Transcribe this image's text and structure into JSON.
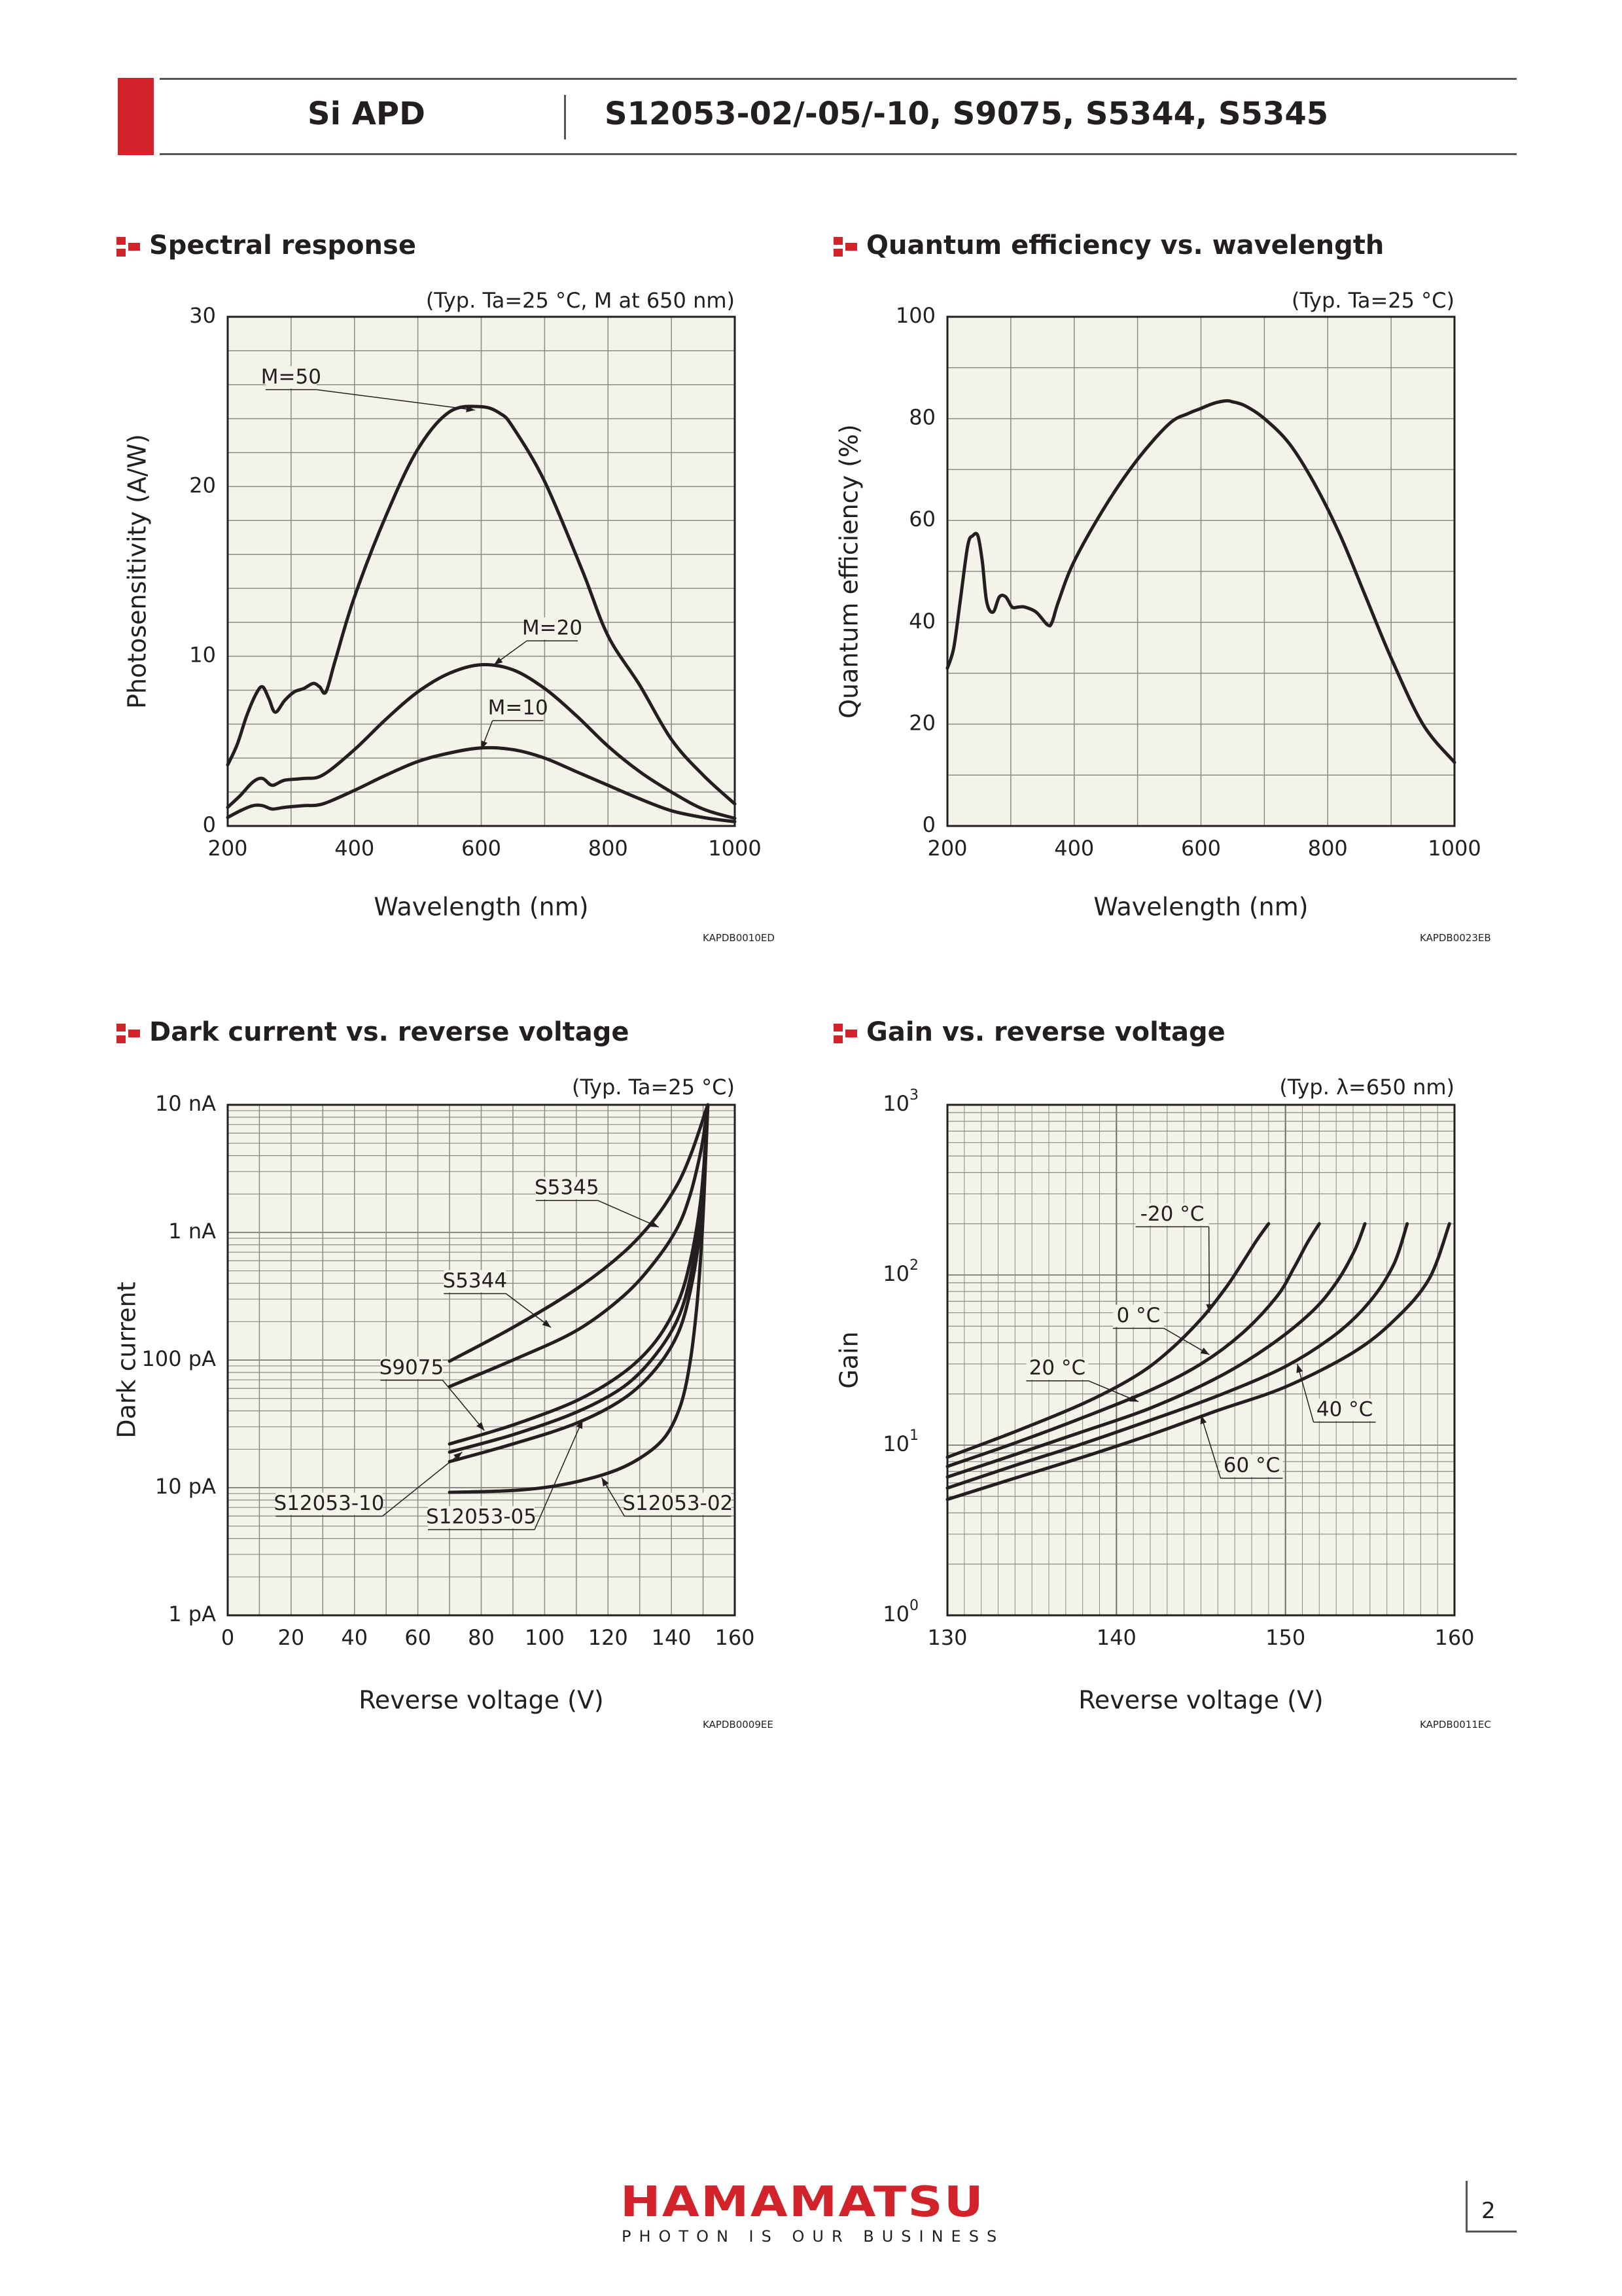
{
  "header": {
    "left_title": "Si APD",
    "right_title": "S12053-02/-05/-10, S9075, S5344, S5345"
  },
  "sections": {
    "spectral": "Spectral response",
    "qe": "Quantum efficiency vs. wavelength",
    "dark": "Dark current vs. reverse voltage",
    "gain": "Gain vs. reverse voltage"
  },
  "codes": {
    "spectral": "KAPDB0010ED",
    "qe": "KAPDB0023EB",
    "dark": "KAPDB0009EE",
    "gain": "KAPDB0011EC"
  },
  "footer": {
    "logo": "HAMAMATSU",
    "tagline": "PHOTON IS OUR BUSINESS",
    "page": "2"
  },
  "colors": {
    "brand_red": "#d2232a",
    "plot_bg": "#f4f3ea",
    "ink": "#231f20"
  },
  "chart_data": [
    {
      "id": "spectral",
      "type": "line",
      "note": "(Typ. Ta=25 °C, M at 650 nm)",
      "xlabel": "Wavelength (nm)",
      "ylabel": "Photosensitivity (A/W)",
      "xlim": [
        200,
        1000
      ],
      "ylim": [
        0,
        30
      ],
      "xticks": [
        200,
        400,
        600,
        800,
        1000
      ],
      "yticks": [
        0,
        10,
        20,
        30
      ],
      "grid": true,
      "series": [
        {
          "name": "M=50",
          "x": [
            200,
            215,
            230,
            245,
            255,
            265,
            275,
            290,
            305,
            320,
            335,
            345,
            355,
            370,
            400,
            450,
            500,
            550,
            600,
            630,
            650,
            700,
            760,
            800,
            850,
            900,
            950,
            1000
          ],
          "y": [
            3.6,
            4.8,
            6.5,
            7.8,
            8.2,
            7.5,
            6.7,
            7.4,
            7.9,
            8.1,
            8.4,
            8.2,
            7.9,
            9.8,
            13.5,
            18.3,
            22.2,
            24.4,
            24.7,
            24.3,
            23.5,
            20.3,
            15.0,
            11.2,
            8.3,
            5.1,
            3.0,
            1.3
          ]
        },
        {
          "name": "M=20",
          "x": [
            200,
            220,
            240,
            255,
            270,
            290,
            320,
            350,
            400,
            450,
            500,
            550,
            600,
            650,
            700,
            750,
            800,
            850,
            900,
            950,
            1000
          ],
          "y": [
            1.1,
            1.8,
            2.6,
            2.8,
            2.4,
            2.7,
            2.8,
            3.0,
            4.5,
            6.3,
            7.9,
            9.0,
            9.5,
            9.2,
            8.1,
            6.5,
            4.7,
            3.2,
            2.0,
            1.0,
            0.45
          ]
        },
        {
          "name": "M=10",
          "x": [
            200,
            220,
            240,
            255,
            270,
            290,
            320,
            350,
            400,
            450,
            500,
            550,
            600,
            650,
            700,
            750,
            800,
            850,
            900,
            950,
            1000
          ],
          "y": [
            0.5,
            0.9,
            1.2,
            1.2,
            1.0,
            1.1,
            1.2,
            1.3,
            2.1,
            3.0,
            3.8,
            4.3,
            4.6,
            4.5,
            4.0,
            3.2,
            2.4,
            1.6,
            0.9,
            0.5,
            0.25
          ]
        }
      ],
      "annotations": [
        {
          "text": "M=50",
          "x": 300,
          "y": 26.4,
          "target": [
            590,
            24.5
          ]
        },
        {
          "text": "M=20",
          "x": 712,
          "y": 11.6,
          "target": [
            620,
            9.5
          ]
        },
        {
          "text": "M=10",
          "x": 658,
          "y": 6.9,
          "target": [
            600,
            4.5
          ]
        }
      ]
    },
    {
      "id": "qe",
      "type": "line",
      "note": "(Typ. Ta=25 °C)",
      "xlabel": "Wavelength (nm)",
      "ylabel": "Quantum efficiency (%)",
      "xlim": [
        200,
        1000
      ],
      "ylim": [
        0,
        100
      ],
      "xticks": [
        200,
        400,
        600,
        800,
        1000
      ],
      "yticks": [
        0,
        20,
        40,
        60,
        80,
        100
      ],
      "grid": true,
      "series": [
        {
          "name": "",
          "x": [
            200,
            210,
            220,
            232,
            240,
            248,
            255,
            262,
            272,
            282,
            292,
            302,
            312,
            322,
            340,
            358,
            365,
            375,
            400,
            450,
            500,
            550,
            580,
            600,
            620,
            640,
            650,
            670,
            700,
            740,
            780,
            820,
            860,
            900,
            950,
            1000
          ],
          "y": [
            31,
            35,
            44,
            55,
            57,
            57,
            52,
            44,
            42,
            45,
            45,
            43,
            43,
            43,
            42,
            39.5,
            40,
            44,
            52,
            63,
            72,
            79,
            81,
            82,
            83,
            83.5,
            83.3,
            82.5,
            80,
            75,
            67,
            57,
            45,
            33,
            20,
            12.5
          ]
        }
      ]
    },
    {
      "id": "dark",
      "type": "line",
      "note": "(Typ. Ta=25 °C)",
      "xlabel": "Reverse voltage (V)",
      "ylabel": "Dark current",
      "xlim": [
        0,
        160
      ],
      "ylim": [
        1e-12,
        1e-08
      ],
      "yscale": "log",
      "xticks": [
        0,
        20,
        40,
        60,
        80,
        100,
        120,
        140,
        160
      ],
      "yticks": [
        1e-12,
        1e-11,
        1e-10,
        1e-09,
        1e-08
      ],
      "yticklabels": [
        "1 pA",
        "10 pA",
        "100 pA",
        "1 nA",
        "10 nA"
      ],
      "grid": true,
      "series": [
        {
          "name": "S5345",
          "x": [
            70,
            90,
            110,
            125,
            135,
            142,
            146,
            149,
            150.5,
            151.5
          ],
          "y": [
            9.8e-11,
            1.8e-10,
            3.6e-10,
            7e-10,
            1.3e-09,
            2.4e-09,
            4e-09,
            6.5e-09,
            8.5e-09,
            1e-08
          ]
        },
        {
          "name": "S5344",
          "x": [
            70,
            90,
            110,
            125,
            135,
            142,
            146,
            149,
            150.5,
            151.5
          ],
          "y": [
            6.2e-11,
            1e-10,
            1.7e-10,
            3.2e-10,
            6e-10,
            1.1e-09,
            2e-09,
            4e-09,
            6.5e-09,
            1e-08
          ]
        },
        {
          "name": "S9075",
          "x": [
            70,
            90,
            110,
            125,
            135,
            142,
            146,
            149,
            150.5,
            151.5
          ],
          "y": [
            2.2e-11,
            3.1e-11,
            4.8e-11,
            8e-11,
            1.4e-10,
            2.8e-10,
            6e-10,
            1.6e-09,
            4e-09,
            1e-08
          ]
        },
        {
          "name": "S12053-10",
          "x": [
            70,
            90,
            110,
            125,
            135,
            142,
            146,
            149,
            150.5,
            151.5
          ],
          "y": [
            1.9e-11,
            2.6e-11,
            3.9e-11,
            6.2e-11,
            1.1e-10,
            2.1e-10,
            4.5e-10,
            1.3e-09,
            3.6e-09,
            1e-08
          ]
        },
        {
          "name": "S12053-05",
          "x": [
            70,
            90,
            110,
            125,
            135,
            142,
            146,
            149,
            150.5,
            151.5
          ],
          "y": [
            1.6e-11,
            2.2e-11,
            3.2e-11,
            5e-11,
            8.5e-11,
            1.6e-10,
            3.5e-10,
            1e-09,
            3.2e-09,
            1e-08
          ]
        },
        {
          "name": "S12053-02",
          "x": [
            70,
            90,
            105,
            120,
            130,
            138,
            143,
            146,
            148,
            149.5,
            150.5,
            151.5
          ],
          "y": [
            9.2e-12,
            9.5e-12,
            1.05e-11,
            1.3e-11,
            1.7e-11,
            2.5e-11,
            4.5e-11,
            1e-10,
            2.6e-10,
            8e-10,
            2.5e-09,
            1e-08
          ]
        }
      ],
      "annotations": [
        {
          "text": "S5345",
          "x": 107,
          "y": 2.2e-09,
          "target": [
            136,
            1.1e-09
          ]
        },
        {
          "text": "S5344",
          "x": 78,
          "y": 4.1e-10,
          "target": [
            102,
            1.8e-10
          ]
        },
        {
          "text": "S9075",
          "x": 58,
          "y": 8.6e-11,
          "target": [
            81,
            2.8e-11
          ]
        },
        {
          "text": "S12053-10",
          "x": 32,
          "y": 7.4e-12,
          "target": [
            74,
            1.9e-11
          ]
        },
        {
          "text": "S12053-05",
          "x": 80,
          "y": 5.8e-12,
          "target": [
            112,
            3.4e-11
          ]
        },
        {
          "text": "S12053-02",
          "x": 142,
          "y": 7.4e-12,
          "target": [
            118,
            1.2e-11
          ]
        }
      ]
    },
    {
      "id": "gain",
      "type": "line",
      "note": "(Typ. λ=650 nm)",
      "xlabel": "Reverse voltage (V)",
      "ylabel": "Gain",
      "xlim": [
        130,
        160
      ],
      "ylim": [
        1,
        1000
      ],
      "yscale": "log",
      "xticks": [
        130,
        140,
        150,
        160
      ],
      "yticks": [
        1,
        10,
        100,
        1000
      ],
      "yticklabels": [
        "10^0",
        "10^1",
        "10^2",
        "10^3"
      ],
      "grid": true,
      "series": [
        {
          "name": "-20 °C",
          "x": [
            130,
            134,
            138,
            141,
            143,
            145,
            146.5,
            147.5,
            148.3,
            149
          ],
          "y": [
            8.5,
            12,
            17.5,
            25,
            35,
            55,
            85,
            120,
            160,
            200
          ]
        },
        {
          "name": "0 °C",
          "x": [
            130,
            134,
            138,
            142,
            145,
            147.5,
            149.5,
            150.5,
            151.3,
            152
          ],
          "y": [
            7.5,
            10.3,
            14.5,
            21,
            30,
            46,
            75,
            110,
            155,
            200
          ]
        },
        {
          "name": "20 °C",
          "x": [
            130,
            134,
            138,
            142,
            146,
            149,
            151.5,
            153,
            154.1,
            154.7
          ],
          "y": [
            6.5,
            8.8,
            12,
            16.5,
            25,
            38,
            60,
            90,
            140,
            200
          ]
        },
        {
          "name": "40 °C",
          "x": [
            130,
            134,
            138,
            142,
            146,
            150,
            153,
            155,
            156.4,
            157.2
          ],
          "y": [
            5.6,
            7.6,
            10.2,
            14,
            19.5,
            29,
            45,
            70,
            115,
            200
          ]
        },
        {
          "name": "60 °C",
          "x": [
            130,
            134,
            138,
            142,
            146,
            150,
            154,
            156.5,
            158.5,
            159.7
          ],
          "y": [
            4.8,
            6.4,
            8.5,
            11.5,
            16,
            22,
            35,
            55,
            95,
            200
          ]
        }
      ],
      "annotations": [
        {
          "text": "-20 °C",
          "x": 143.3,
          "y": 225,
          "target": [
            145.5,
            60
          ]
        },
        {
          "text": "0 °C",
          "x": 141.3,
          "y": 57,
          "target": [
            145.5,
            34
          ]
        },
        {
          "text": "20 °C",
          "x": 136.5,
          "y": 28,
          "target": [
            141.3,
            18
          ]
        },
        {
          "text": "40 °C",
          "x": 153.5,
          "y": 16,
          "target": [
            150.7,
            30
          ]
        },
        {
          "text": "60 °C",
          "x": 148,
          "y": 7.5,
          "target": [
            145,
            15
          ]
        }
      ]
    }
  ]
}
